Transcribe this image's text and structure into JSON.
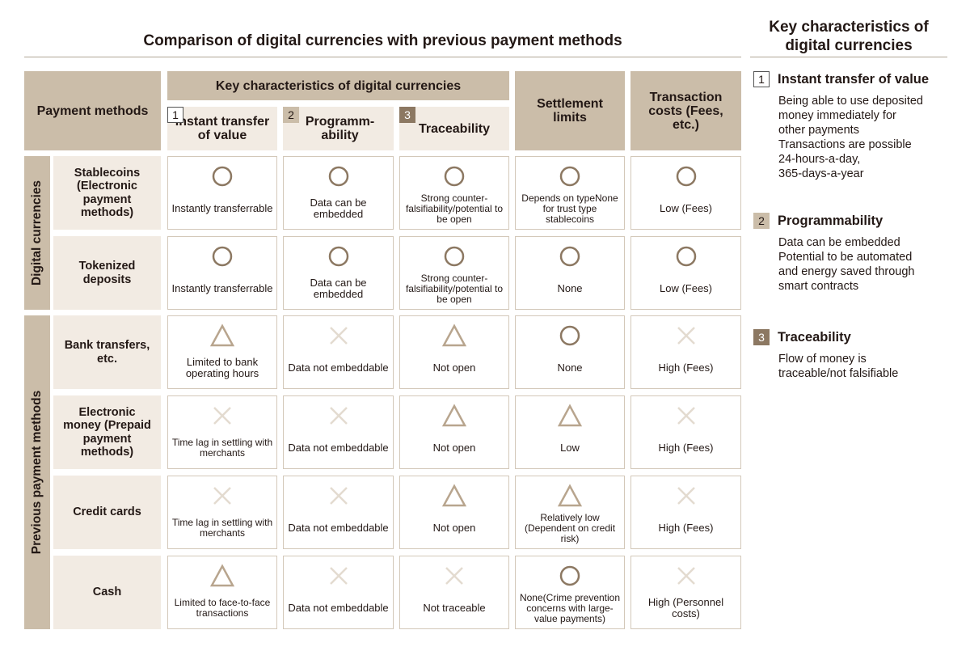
{
  "title": "Comparison of digital currencies with previous payment methods",
  "side_panel": {
    "title": "Key characteristics of digital currencies",
    "items": [
      {
        "num": "1",
        "title": "Instant transfer of value",
        "lines": [
          "Being able to use deposited",
          "money immediately for",
          "other payments",
          "Transactions are possible",
          "24-hours-a-day,",
          "365-days-a-year"
        ]
      },
      {
        "num": "2",
        "title": "Programmability",
        "lines": [
          "Data can be embedded",
          "Potential to be automated",
          "and energy saved through",
          "smart contracts"
        ]
      },
      {
        "num": "3",
        "title": "Traceability",
        "lines": [
          "Flow of money is",
          "traceable/not falsifiable"
        ]
      }
    ]
  },
  "table": {
    "header": {
      "payment_methods": "Payment methods",
      "key_characteristics": "Key characteristics of digital currencies",
      "settlement_limits": "Settlement limits",
      "transaction_costs": "Transaction costs (Fees, etc.)",
      "sub": [
        {
          "num": "1",
          "label": "Instant transfer of value"
        },
        {
          "num": "2",
          "label": "Programm-ability"
        },
        {
          "num": "3",
          "label": "Traceability"
        }
      ]
    },
    "groups": {
      "digital": "Digital currencies",
      "previous": "Previous payment methods"
    },
    "rows": [
      {
        "label": "Stablecoins (Electronic payment methods)",
        "cells": [
          {
            "symbol": "circle",
            "text": "Instantly transferrable"
          },
          {
            "symbol": "circle",
            "text": "Data can be embedded"
          },
          {
            "symbol": "circle",
            "text": "Strong counter-falsifiability/potential to be open"
          },
          {
            "symbol": "circle",
            "text": "Depends on typeNone for trust type stablecoins"
          },
          {
            "symbol": "circle",
            "text": "Low (Fees)"
          }
        ]
      },
      {
        "label": "Tokenized deposits",
        "cells": [
          {
            "symbol": "circle",
            "text": "Instantly transferrable"
          },
          {
            "symbol": "circle",
            "text": "Data can be embedded"
          },
          {
            "symbol": "circle",
            "text": "Strong counter-falsifiability/potential to be open"
          },
          {
            "symbol": "circle",
            "text": "None"
          },
          {
            "symbol": "circle",
            "text": "Low (Fees)"
          }
        ]
      },
      {
        "label": "Bank transfers, etc.",
        "cells": [
          {
            "symbol": "triangle",
            "text": "Limited to bank operating hours"
          },
          {
            "symbol": "cross",
            "text": "Data not embeddable"
          },
          {
            "symbol": "triangle",
            "text": "Not open"
          },
          {
            "symbol": "circle",
            "text": "None"
          },
          {
            "symbol": "cross",
            "text": "High (Fees)"
          }
        ]
      },
      {
        "label": "Electronic money (Prepaid payment methods)",
        "cells": [
          {
            "symbol": "cross",
            "text": "Time lag in settling with merchants"
          },
          {
            "symbol": "cross",
            "text": "Data not embeddable"
          },
          {
            "symbol": "triangle",
            "text": "Not open"
          },
          {
            "symbol": "triangle",
            "text": "Low"
          },
          {
            "symbol": "cross",
            "text": "High (Fees)"
          }
        ]
      },
      {
        "label": "Credit cards",
        "cells": [
          {
            "symbol": "cross",
            "text": "Time lag in settling with merchants"
          },
          {
            "symbol": "cross",
            "text": "Data not embeddable"
          },
          {
            "symbol": "triangle",
            "text": "Not open"
          },
          {
            "symbol": "triangle",
            "text": "Relatively low (Dependent on credit risk)"
          },
          {
            "symbol": "cross",
            "text": "High (Fees)"
          }
        ]
      },
      {
        "label": "Cash",
        "cells": [
          {
            "symbol": "triangle",
            "text": "Limited to face-to-face transactions"
          },
          {
            "symbol": "cross",
            "text": "Data not embeddable"
          },
          {
            "symbol": "cross",
            "text": "Not traceable"
          },
          {
            "symbol": "circle",
            "text": "None(Crime prevention concerns with large-value payments)"
          },
          {
            "symbol": "cross",
            "text": "High (Personnel costs)"
          }
        ]
      }
    ]
  },
  "colors": {
    "header_dark": "#cbbda9",
    "header_light": "#f2ebe3",
    "symbol_circle": "#8c7862",
    "symbol_triangle": "#b8a58e",
    "symbol_cross": "#e3dbd0"
  }
}
